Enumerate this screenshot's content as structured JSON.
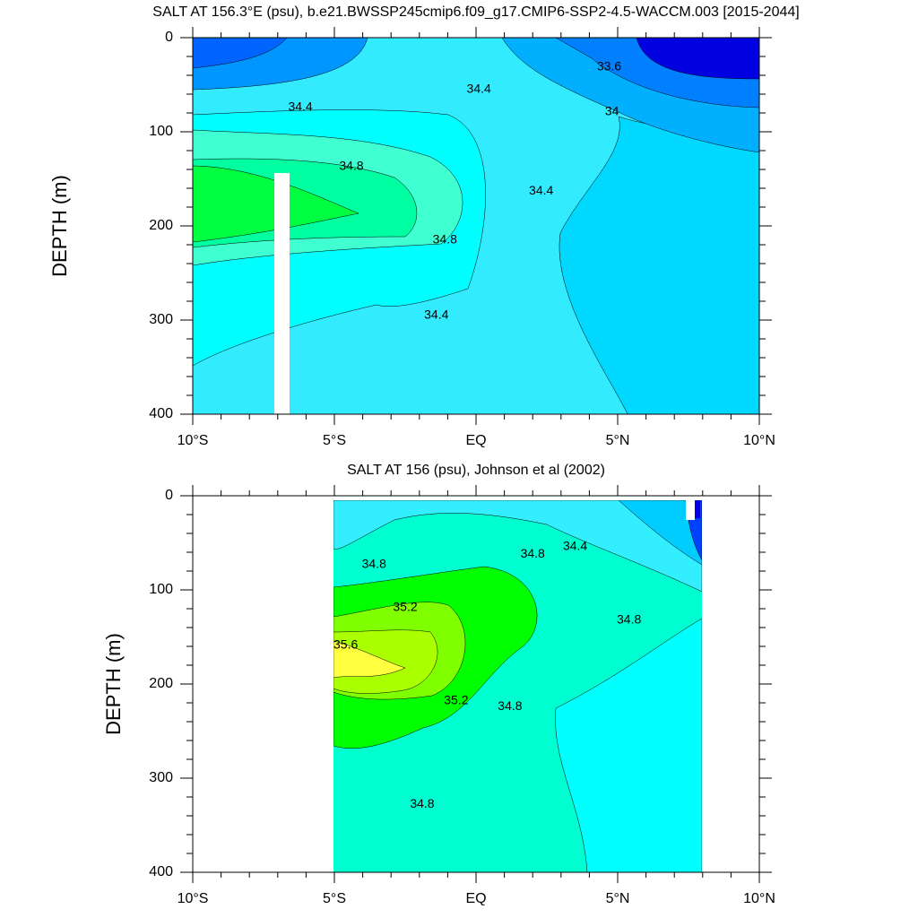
{
  "chart_data": [
    {
      "type": "contour",
      "title": "SALT AT 156.3°E (psu), b.e21.BWSSP245cmip6.f09_g17.CMIP6-SSP2-4.5-WACCM.003 [2015-2044]",
      "y_label": "DEPTH (m)",
      "xlim": [
        -10,
        10
      ],
      "xticks": [
        {
          "value": -10,
          "label": "10°S"
        },
        {
          "value": -5,
          "label": "5°S"
        },
        {
          "value": 0,
          "label": "EQ"
        },
        {
          "value": 5,
          "label": "5°N"
        },
        {
          "value": 10,
          "label": "10°N"
        }
      ],
      "ylim": [
        400,
        0
      ],
      "yticks": [
        0,
        100,
        200,
        300,
        400
      ],
      "contour_labels": [
        {
          "value": 33.6,
          "lat": 4.7,
          "depth": 31
        },
        {
          "value": 34.4,
          "lat": 0.1,
          "depth": 55
        },
        {
          "value": 34.4,
          "lat": -6.2,
          "depth": 74
        },
        {
          "value": 34,
          "lat": 4.8,
          "depth": 79
        },
        {
          "value": 34.8,
          "lat": -4.4,
          "depth": 137
        },
        {
          "value": 34.4,
          "lat": 2.3,
          "depth": 163
        },
        {
          "value": 34.8,
          "lat": -1.1,
          "depth": 215
        },
        {
          "value": 34.4,
          "lat": -1.4,
          "depth": 295
        }
      ]
    },
    {
      "type": "contour",
      "title": "SALT AT 156 (psu), Johnson et al (2002)",
      "y_label": "DEPTH (m)",
      "xlim": [
        -10,
        10
      ],
      "xticks": [
        {
          "value": -10,
          "label": "10°S"
        },
        {
          "value": -5,
          "label": "5°S"
        },
        {
          "value": 0,
          "label": "EQ"
        },
        {
          "value": 5,
          "label": "5°N"
        },
        {
          "value": 10,
          "label": "10°N"
        }
      ],
      "ylim": [
        400,
        0
      ],
      "yticks": [
        0,
        100,
        200,
        300,
        400
      ],
      "contour_labels": [
        {
          "value": 34.4,
          "lat": 3.5,
          "depth": 54
        },
        {
          "value": 34.8,
          "lat": 2.0,
          "depth": 62
        },
        {
          "value": 34.8,
          "lat": -3.6,
          "depth": 73
        },
        {
          "value": 35.2,
          "lat": -2.5,
          "depth": 119
        },
        {
          "value": 34.8,
          "lat": 5.4,
          "depth": 132
        },
        {
          "value": 35.6,
          "lat": -4.6,
          "depth": 159
        },
        {
          "value": 35.2,
          "lat": -0.7,
          "depth": 218
        },
        {
          "value": 34.8,
          "lat": 1.2,
          "depth": 224
        },
        {
          "value": 34.8,
          "lat": -1.9,
          "depth": 328
        }
      ]
    }
  ]
}
